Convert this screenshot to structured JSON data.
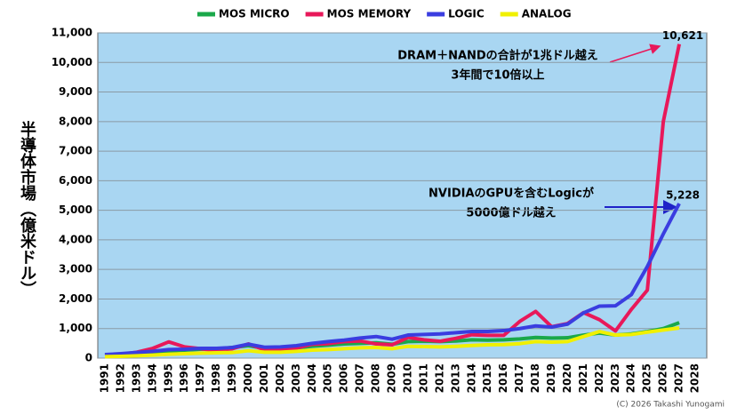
{
  "chart_data": {
    "type": "line",
    "y_label": "半導体市場（億米ドル）",
    "categories": [
      "1991",
      "1992",
      "1993",
      "1994",
      "1995",
      "1996",
      "1997",
      "1998",
      "1999",
      "2000",
      "2001",
      "2002",
      "2003",
      "2004",
      "2005",
      "2006",
      "2007",
      "2008",
      "2009",
      "2010",
      "2011",
      "2012",
      "2013",
      "2014",
      "2015",
      "2016",
      "2017",
      "2018",
      "2019",
      "2020",
      "2021",
      "2022",
      "2023",
      "2024",
      "2025",
      "2026",
      "2027",
      "2028"
    ],
    "series": [
      {
        "name": "MOS MICRO",
        "color": "#1aa84a",
        "values": [
          80,
          110,
          150,
          190,
          240,
          270,
          300,
          310,
          360,
          420,
          330,
          330,
          350,
          400,
          440,
          480,
          500,
          520,
          470,
          560,
          570,
          560,
          580,
          620,
          610,
          620,
          650,
          700,
          680,
          690,
          780,
          850,
          780,
          820,
          900,
          1000,
          1200,
          null
        ]
      },
      {
        "name": "MOS MEMORY",
        "color": "#e8185a",
        "values": [
          100,
          130,
          200,
          330,
          550,
          380,
          320,
          250,
          320,
          480,
          280,
          300,
          340,
          470,
          490,
          560,
          580,
          480,
          450,
          700,
          620,
          570,
          670,
          790,
          770,
          770,
          1240,
          1580,
          1060,
          1170,
          1540,
          1300,
          920,
          1650,
          2300,
          8000,
          10621,
          null
        ],
        "value_labels": [
          null,
          null,
          null,
          null,
          null,
          null,
          null,
          null,
          null,
          null,
          null,
          null,
          null,
          null,
          null,
          null,
          null,
          null,
          null,
          null,
          null,
          null,
          null,
          null,
          null,
          null,
          null,
          null,
          null,
          null,
          null,
          null,
          null,
          null,
          null,
          null,
          "10,621",
          null
        ]
      },
      {
        "name": "LOGIC",
        "color": "#3a3de0",
        "values": [
          120,
          150,
          190,
          230,
          290,
          300,
          330,
          330,
          360,
          470,
          370,
          380,
          420,
          500,
          560,
          610,
          680,
          730,
          640,
          780,
          800,
          820,
          860,
          900,
          900,
          930,
          1000,
          1090,
          1050,
          1150,
          1530,
          1760,
          1770,
          2150,
          3100,
          4200,
          5228,
          null
        ],
        "value_labels": [
          null,
          null,
          null,
          null,
          null,
          null,
          null,
          null,
          null,
          null,
          null,
          null,
          null,
          null,
          null,
          null,
          null,
          null,
          null,
          null,
          null,
          null,
          null,
          null,
          null,
          null,
          null,
          null,
          null,
          null,
          null,
          null,
          null,
          null,
          null,
          null,
          "5,228",
          null
        ]
      },
      {
        "name": "ANALOG",
        "color": "#f0f000",
        "values": [
          50,
          60,
          80,
          100,
          130,
          150,
          170,
          180,
          190,
          250,
          200,
          200,
          230,
          270,
          290,
          320,
          350,
          360,
          320,
          400,
          390,
          380,
          400,
          430,
          450,
          460,
          490,
          560,
          540,
          560,
          730,
          900,
          780,
          800,
          880,
          950,
          1020,
          null
        ]
      }
    ],
    "ylim": [
      0,
      11000
    ],
    "yticks": [
      0,
      {
        "value": 1000,
        "label": "1,000"
      },
      {
        "value": 2000,
        "label": "2,000"
      },
      {
        "value": 3000,
        "label": "3,000"
      },
      {
        "value": 4000,
        "label": "4,000"
      },
      {
        "value": 5000,
        "label": "5,000"
      },
      {
        "value": 6000,
        "label": "6,000"
      },
      {
        "value": 7000,
        "label": "7,000"
      },
      {
        "value": 8000,
        "label": "8,000"
      },
      {
        "value": 9000,
        "label": "9,000"
      },
      {
        "value": 10000,
        "label": "10,000"
      },
      {
        "value": 11000,
        "label": "11,000"
      }
    ],
    "grid": true,
    "legend": "top",
    "annotations": [
      "DRAM＋NANDの合計が1兆ドル越え",
      "3年間で10倍以上",
      "NVIDIAのGPUを含むLogicが",
      "5000億ドル越え"
    ],
    "copyright": "(C) 2026 Takashi Yunogami"
  }
}
